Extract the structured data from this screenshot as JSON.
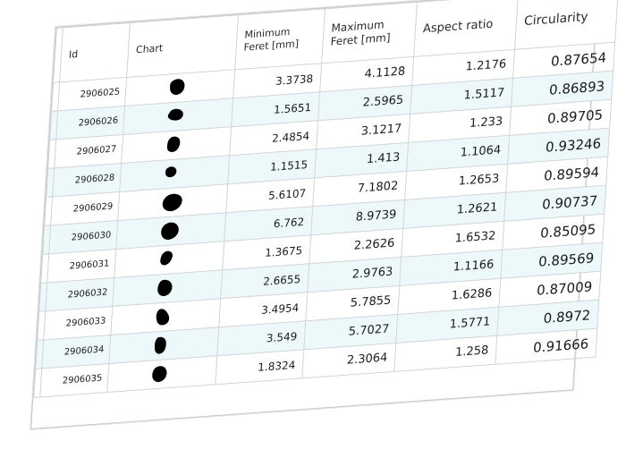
{
  "table": {
    "columns": {
      "id": "Id",
      "chart": "Chart",
      "min_feret": "Minimum Feret [mm]",
      "max_feret": "Maximum Feret [mm]",
      "aspect_ratio": "Aspect ratio",
      "circularity": "Circularity"
    },
    "rows": [
      {
        "id": "2906025",
        "min_feret": "3.3738",
        "max_feret": "4.1128",
        "aspect_ratio": "1.2176",
        "circularity": "0.87654",
        "particle_icon": "particle-silhouette"
      },
      {
        "id": "2906026",
        "min_feret": "1.5651",
        "max_feret": "2.5965",
        "aspect_ratio": "1.5117",
        "circularity": "0.86893",
        "particle_icon": "particle-silhouette"
      },
      {
        "id": "2906027",
        "min_feret": "2.4854",
        "max_feret": "3.1217",
        "aspect_ratio": "1.233",
        "circularity": "0.89705",
        "particle_icon": "particle-silhouette"
      },
      {
        "id": "2906028",
        "min_feret": "1.1515",
        "max_feret": "1.413",
        "aspect_ratio": "1.1064",
        "circularity": "0.93246",
        "particle_icon": "particle-silhouette"
      },
      {
        "id": "2906029",
        "min_feret": "5.6107",
        "max_feret": "7.1802",
        "aspect_ratio": "1.2653",
        "circularity": "0.89594",
        "particle_icon": "particle-silhouette"
      },
      {
        "id": "2906030",
        "min_feret": "6.762",
        "max_feret": "8.9739",
        "aspect_ratio": "1.2621",
        "circularity": "0.90737",
        "particle_icon": "particle-silhouette"
      },
      {
        "id": "2906031",
        "min_feret": "1.3675",
        "max_feret": "2.2626",
        "aspect_ratio": "1.6532",
        "circularity": "0.85095",
        "particle_icon": "particle-silhouette"
      },
      {
        "id": "2906032",
        "min_feret": "2.6655",
        "max_feret": "2.9763",
        "aspect_ratio": "1.1166",
        "circularity": "0.89569",
        "particle_icon": "particle-silhouette"
      },
      {
        "id": "2906033",
        "min_feret": "3.4954",
        "max_feret": "5.7855",
        "aspect_ratio": "1.6286",
        "circularity": "0.87009",
        "particle_icon": "particle-silhouette"
      },
      {
        "id": "2906034",
        "min_feret": "3.549",
        "max_feret": "5.7027",
        "aspect_ratio": "1.5771",
        "circularity": "0.8972",
        "particle_icon": "particle-silhouette"
      },
      {
        "id": "2906035",
        "min_feret": "1.8324",
        "max_feret": "2.3064",
        "aspect_ratio": "1.258",
        "circularity": "0.91666",
        "particle_icon": "particle-silhouette"
      }
    ]
  },
  "colors": {
    "row_alt_background": "#edf8fa",
    "grid_line": "#cfd4d8",
    "particle_fill": "#000000"
  }
}
